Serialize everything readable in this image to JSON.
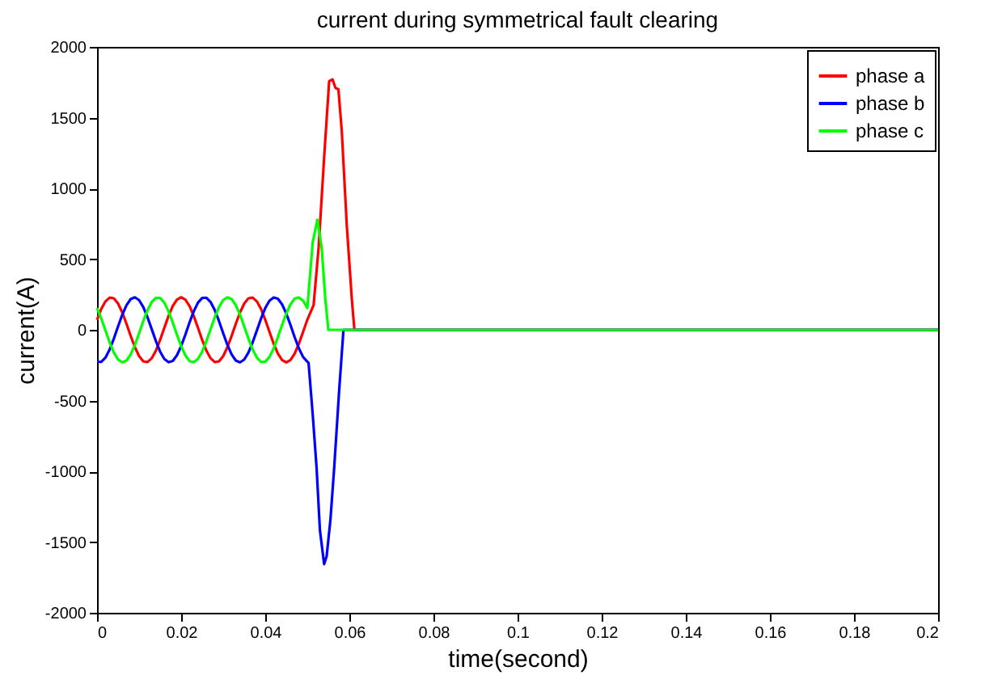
{
  "chart_data": {
    "type": "line",
    "title": "current during symmetrical fault clearing",
    "xlabel": "time(second)",
    "ylabel": "current(A)",
    "xlim": [
      0,
      0.2
    ],
    "xticks": [
      0,
      0.02,
      0.04,
      0.06,
      0.08,
      0.1,
      0.12,
      0.14,
      0.16,
      0.18,
      0.2
    ],
    "ylim": [
      -2000,
      2000
    ],
    "yticks": [
      -2000,
      -1500,
      -1000,
      -500,
      0,
      500,
      1000,
      1500,
      2000
    ],
    "legend": "top right",
    "marker": "none",
    "line_style": "solid",
    "series": [
      {
        "name": "phase a",
        "color": "#ff0000",
        "x": [
          0,
          0.001,
          0.002,
          0.003,
          0.004,
          0.005,
          0.006,
          0.007,
          0.008,
          0.009,
          0.01,
          0.011,
          0.012,
          0.013,
          0.014,
          0.015,
          0.016,
          0.017,
          0.018,
          0.019,
          0.02,
          0.021,
          0.022,
          0.023,
          0.024,
          0.025,
          0.026,
          0.027,
          0.028,
          0.029,
          0.03,
          0.031,
          0.032,
          0.033,
          0.034,
          0.035,
          0.036,
          0.037,
          0.038,
          0.039,
          0.04,
          0.041,
          0.042,
          0.043,
          0.044,
          0.045,
          0.046,
          0.047,
          0.048,
          0.049,
          0.05,
          0.0515,
          0.0527,
          0.054,
          0.0552,
          0.056,
          0.0567,
          0.0574,
          0.0582,
          0.0594,
          0.0606,
          0.0612,
          0.2
        ],
        "values": [
          71,
          147,
          201,
          228,
          223,
          186,
          123,
          43,
          -43,
          -123,
          -186,
          -223,
          -228,
          -201,
          -147,
          -71,
          14,
          98,
          168,
          214,
          230,
          214,
          168,
          98,
          14,
          -71,
          -147,
          -201,
          -228,
          -223,
          -186,
          -123,
          -43,
          43,
          123,
          186,
          223,
          228,
          201,
          147,
          71,
          -14,
          -98,
          -168,
          -214,
          -230,
          -214,
          -168,
          -98,
          -14,
          71,
          175,
          585,
          1218,
          1758,
          1770,
          1710,
          1700,
          1404,
          734,
          212,
          0,
          0
        ]
      },
      {
        "name": "phase b",
        "color": "#0000ff",
        "x": [
          0,
          0.001,
          0.002,
          0.003,
          0.004,
          0.005,
          0.006,
          0.007,
          0.008,
          0.009,
          0.01,
          0.011,
          0.012,
          0.013,
          0.014,
          0.015,
          0.016,
          0.017,
          0.018,
          0.019,
          0.02,
          0.021,
          0.022,
          0.023,
          0.024,
          0.025,
          0.026,
          0.027,
          0.028,
          0.029,
          0.03,
          0.031,
          0.032,
          0.033,
          0.034,
          0.035,
          0.036,
          0.037,
          0.038,
          0.039,
          0.04,
          0.041,
          0.042,
          0.043,
          0.044,
          0.045,
          0.046,
          0.047,
          0.048,
          0.049,
          0.05,
          0.0503,
          0.0513,
          0.0522,
          0.053,
          0.054,
          0.0546,
          0.0555,
          0.0564,
          0.0576,
          0.0586,
          0.2
        ],
        "values": [
          -225,
          -227,
          -197,
          -139,
          -62,
          24,
          107,
          174,
          217,
          230,
          210,
          161,
          89,
          5,
          -80,
          -154,
          -206,
          -229,
          -220,
          -180,
          -115,
          -34,
          53,
          131,
          192,
          225,
          227,
          197,
          139,
          62,
          -24,
          -107,
          -174,
          -217,
          -230,
          -210,
          -161,
          -89,
          -5,
          80,
          154,
          206,
          229,
          220,
          180,
          115,
          34,
          -53,
          -131,
          -192,
          -225,
          -233,
          -603,
          -972,
          -1416,
          -1656,
          -1600,
          -1342,
          -972,
          -418,
          0,
          0
        ]
      },
      {
        "name": "phase c",
        "color": "#00ff00",
        "x": [
          0,
          0.001,
          0.002,
          0.003,
          0.004,
          0.005,
          0.006,
          0.007,
          0.008,
          0.009,
          0.01,
          0.011,
          0.012,
          0.013,
          0.014,
          0.015,
          0.016,
          0.017,
          0.018,
          0.019,
          0.02,
          0.021,
          0.022,
          0.023,
          0.024,
          0.025,
          0.026,
          0.027,
          0.028,
          0.029,
          0.03,
          0.031,
          0.032,
          0.033,
          0.034,
          0.035,
          0.036,
          0.037,
          0.038,
          0.039,
          0.04,
          0.041,
          0.042,
          0.043,
          0.044,
          0.045,
          0.046,
          0.047,
          0.048,
          0.049,
          0.05,
          0.0513,
          0.0524,
          0.0534,
          0.0543,
          0.055,
          0.2
        ],
        "values": [
          154,
          80,
          -4,
          -89,
          -161,
          -210,
          -230,
          -217,
          -174,
          -107,
          -24,
          62,
          139,
          196,
          227,
          225,
          192,
          131,
          52,
          -34,
          -115,
          -180,
          -221,
          -229,
          -206,
          -154,
          -80,
          4,
          89,
          161,
          210,
          230,
          217,
          174,
          107,
          24,
          -62,
          -139,
          -196,
          -227,
          -225,
          -192,
          -131,
          -52,
          34,
          115,
          180,
          221,
          229,
          206,
          154,
          622,
          778,
          585,
          212,
          0,
          0
        ]
      }
    ]
  }
}
